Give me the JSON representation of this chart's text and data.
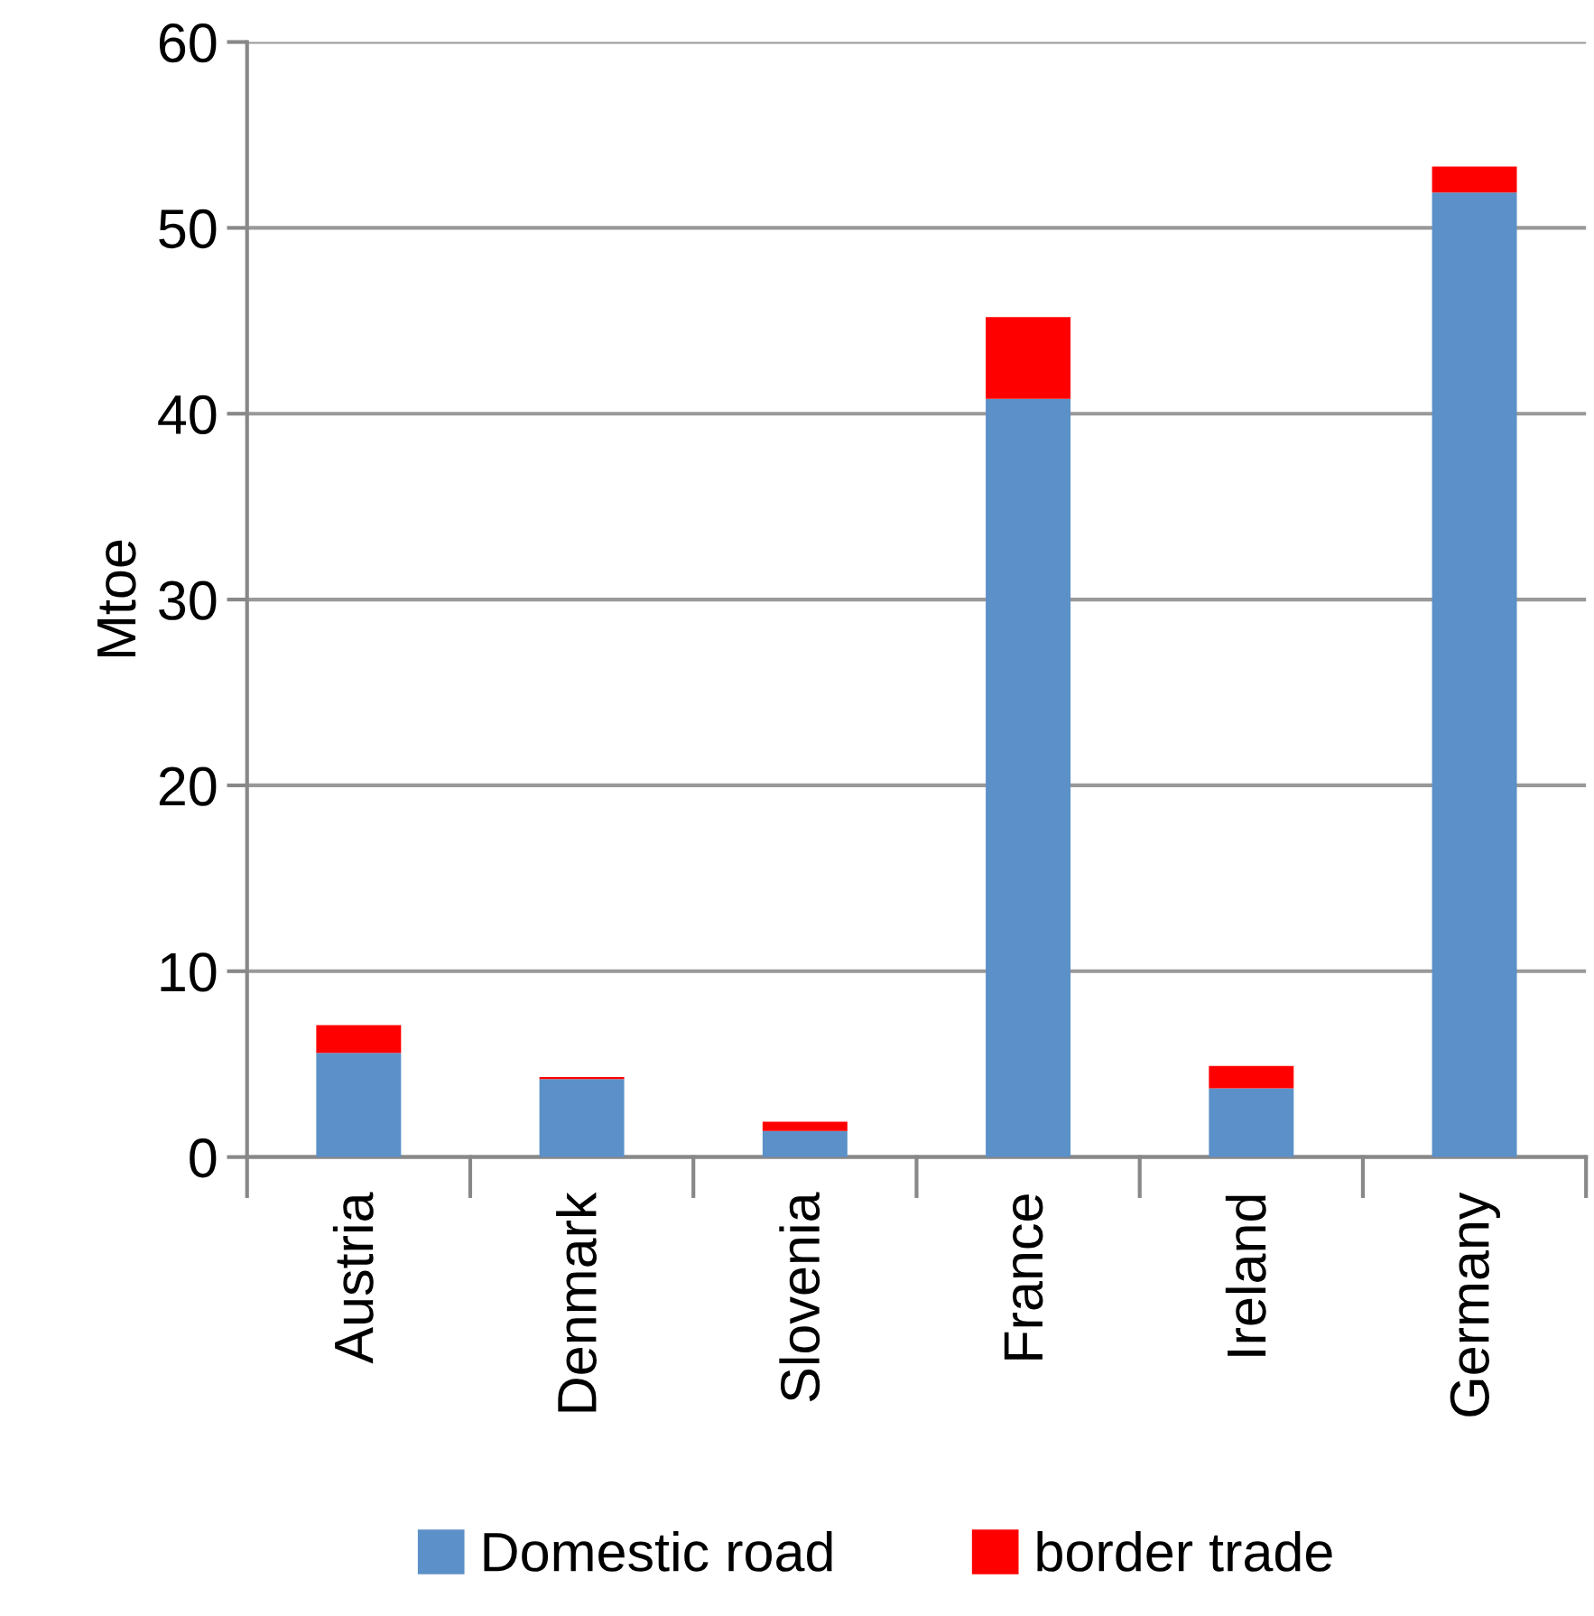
{
  "chart_data": {
    "type": "bar",
    "stacked": true,
    "ylabel": "Mtoe",
    "categories": [
      "Austria",
      "Denmark",
      "Slovenia",
      "France",
      "Ireland",
      "Germany"
    ],
    "series": [
      {
        "name": "Domestic road",
        "color": "#5b90c8",
        "values": [
          5.6,
          4.2,
          1.4,
          40.8,
          3.7,
          51.9
        ]
      },
      {
        "name": "border trade",
        "color": "#ff0000",
        "values": [
          1.5,
          0.1,
          0.5,
          4.4,
          1.2,
          1.4
        ]
      }
    ],
    "ylim": [
      0,
      60
    ],
    "yticks": [
      0,
      10,
      20,
      30,
      40,
      50,
      60
    ],
    "grid": "y",
    "legend": "bottom"
  }
}
